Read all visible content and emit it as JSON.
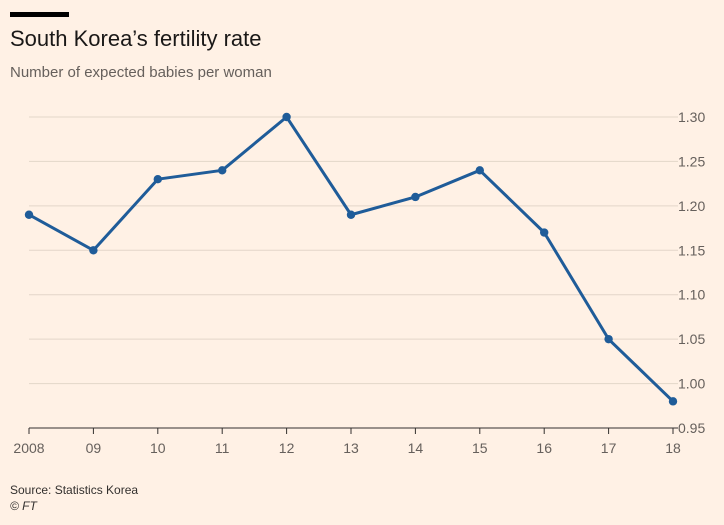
{
  "header": {
    "title": "South Korea’s fertility rate",
    "subtitle": "Number of expected babies per woman"
  },
  "footer": {
    "source": "Source: Statistics Korea",
    "copyright": "© FT"
  },
  "colors": {
    "background": "#fff1e5",
    "line": "#1f5c99",
    "grid": "#e3d6c9",
    "axis": "#33302e"
  },
  "chart_data": {
    "type": "line",
    "title": "South Korea’s fertility rate",
    "subtitle": "Number of expected babies per woman",
    "xlabel": "",
    "ylabel": "",
    "x": [
      2008,
      2009,
      2010,
      2011,
      2012,
      2013,
      2014,
      2015,
      2016,
      2017,
      2018
    ],
    "categories": [
      "2008",
      "09",
      "10",
      "11",
      "12",
      "13",
      "14",
      "15",
      "16",
      "17",
      "18"
    ],
    "series": [
      {
        "name": "Fertility rate",
        "values": [
          1.19,
          1.15,
          1.23,
          1.24,
          1.3,
          1.19,
          1.21,
          1.24,
          1.17,
          1.05,
          0.98
        ]
      }
    ],
    "ylim": [
      0.95,
      1.3
    ],
    "yticks": [
      0.95,
      1.0,
      1.05,
      1.1,
      1.15,
      1.2,
      1.25,
      1.3
    ],
    "ytick_labels": [
      "0.95",
      "1.00",
      "1.05",
      "1.10",
      "1.15",
      "1.20",
      "1.25",
      "1.30"
    ],
    "grid": true,
    "y_axis_side": "right"
  }
}
